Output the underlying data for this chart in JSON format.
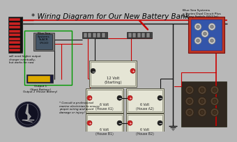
{
  "title": "* Wiring Diagram for Our New Battery Bank",
  "title_fontsize": 7.5,
  "bg_color": "#b8b8b8",
  "top_right_label1": "Blue Sea Systems",
  "top_right_label2": "e-Series Dual Circuit Plus",
  "top_right_label3": "Battery Switch (5511e)",
  "acr_label": "Blue Sea\nSystems\nSi-ACR\n(7610)",
  "will_need": "will need higher output\ncharger eventually,\nbut works for now",
  "output1": "Output 1\n(Start Battery)",
  "output2": "Output 2 (House Battery)",
  "bottom_note": "* Consult a professional\nmarine electrician to ensure\nproper wiring and avoid\ndamage or injury!",
  "batt_12v": "12 Volt\n(Starting)",
  "batt_6v_a1": "6 Volt\n(House A1)",
  "batt_6v_a2": "6 Volt\n(House A2)",
  "batt_6v_b1": "6 Volt\n(House B1)",
  "batt_6v_b2": "6 Volt\n(House B2)",
  "wire_red": "#cc0000",
  "wire_black": "#111111",
  "battery_fc": "#dcdcca",
  "battery_ec": "#555544",
  "panel_fc": "#111111",
  "acr_outer": "#777777",
  "acr_inner": "#445566",
  "switch_outer": "#bb3322",
  "switch_inner": "#3355aa",
  "busbar_fc": "#444444",
  "green_border": "#009900",
  "charger_outer": "#1a1a3a",
  "charger_inner": "#ddaa00",
  "engine_fc": "#302820",
  "logo_fc": "#111122",
  "logo_detail": "#aaaaaa"
}
